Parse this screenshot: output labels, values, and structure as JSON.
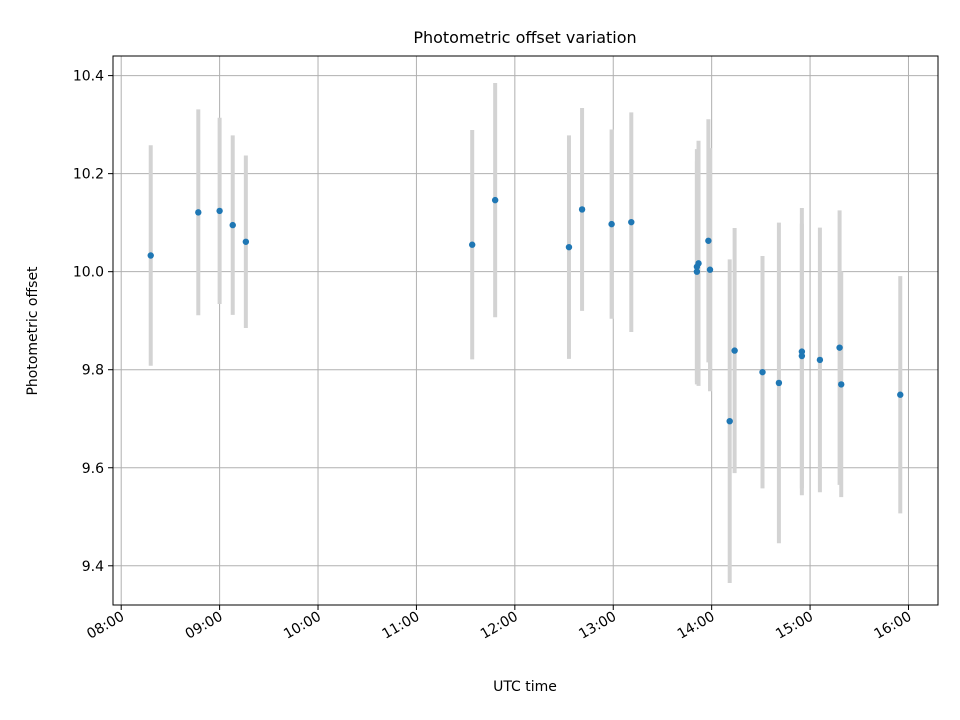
{
  "chart_data": {
    "type": "scatter",
    "title": "Photometric offset variation",
    "xlabel": "UTC time",
    "ylabel": "Photometric offset",
    "x_ticks": [
      "08:00",
      "09:00",
      "10:00",
      "11:00",
      "12:00",
      "13:00",
      "14:00",
      "15:00",
      "16:00"
    ],
    "y_ticks": [
      "9.4",
      "9.6",
      "9.8",
      "10.0",
      "10.2",
      "10.4"
    ],
    "xlim": [
      "07:55",
      "16:18"
    ],
    "ylim": [
      9.32,
      10.44
    ],
    "grid": true,
    "point_color": "#1f77b4",
    "errorbar_color": "#d3d3d3",
    "series": [
      {
        "points": [
          {
            "t": "08:18",
            "y": 10.033,
            "err": 0.225
          },
          {
            "t": "08:47",
            "y": 10.121,
            "err": 0.21
          },
          {
            "t": "09:00",
            "y": 10.124,
            "err": 0.19
          },
          {
            "t": "09:08",
            "y": 10.095,
            "err": 0.183
          },
          {
            "t": "09:16",
            "y": 10.061,
            "err": 0.176
          },
          {
            "t": "11:34",
            "y": 10.055,
            "err": 0.234
          },
          {
            "t": "11:48",
            "y": 10.146,
            "err": 0.239
          },
          {
            "t": "12:33",
            "y": 10.05,
            "err": 0.228
          },
          {
            "t": "12:41",
            "y": 10.127,
            "err": 0.207
          },
          {
            "t": "12:59",
            "y": 10.097,
            "err": 0.193
          },
          {
            "t": "13:11",
            "y": 10.101,
            "err": 0.224
          },
          {
            "t": "13:51",
            "y": 10.0,
            "err": 0.225
          },
          {
            "t": "13:51",
            "y": 10.01,
            "err": 0.24
          },
          {
            "t": "13:52",
            "y": 10.017,
            "err": 0.25
          },
          {
            "t": "13:58",
            "y": 10.063,
            "err": 0.248
          },
          {
            "t": "13:59",
            "y": 10.004,
            "err": 0.248
          },
          {
            "t": "14:11",
            "y": 9.695,
            "err": 0.33
          },
          {
            "t": "14:14",
            "y": 9.839,
            "err": 0.25
          },
          {
            "t": "14:31",
            "y": 9.795,
            "err": 0.237
          },
          {
            "t": "14:41",
            "y": 9.773,
            "err": 0.327
          },
          {
            "t": "14:55",
            "y": 9.837,
            "err": 0.293
          },
          {
            "t": "14:55",
            "y": 9.828,
            "err": 0.27
          },
          {
            "t": "15:06",
            "y": 9.82,
            "err": 0.27
          },
          {
            "t": "15:18",
            "y": 9.845,
            "err": 0.28
          },
          {
            "t": "15:19",
            "y": 9.77,
            "err": 0.23
          },
          {
            "t": "15:55",
            "y": 9.749,
            "err": 0.242
          }
        ]
      }
    ]
  }
}
